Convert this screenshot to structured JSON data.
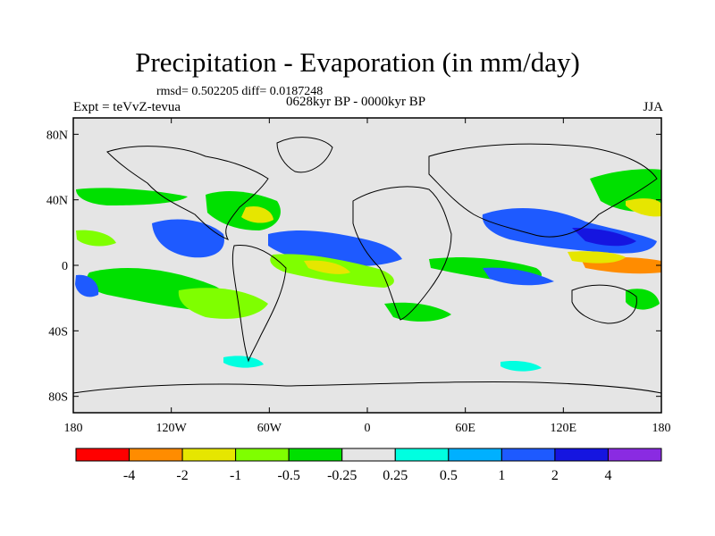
{
  "title": "Precipitation - Evaporation (in mm/day)",
  "stats_text": "rmsd= 0.502205  diff= 0.0187248",
  "left_label": "Expt = teVvZ-tevua",
  "center_label": "0628kyr BP - 0000kyr BP",
  "right_label": "JJA",
  "axes": {
    "lat_ticks": [
      "80N",
      "40N",
      "0",
      "40S",
      "80S"
    ],
    "lon_ticks": [
      "180",
      "120W",
      "60W",
      "0",
      "60E",
      "120E",
      "180"
    ]
  },
  "colorbar": {
    "colors": [
      "#ff0000",
      "#ff8c00",
      "#e6e600",
      "#7fff00",
      "#00e000",
      "#e5e5e5",
      "#00ffe0",
      "#00b0ff",
      "#1e5aff",
      "#1515e0",
      "#8a2be2"
    ],
    "labels": [
      "-4",
      "-2",
      "-1",
      "-0.5",
      "-0.25",
      "0.25",
      "0.5",
      "1",
      "2",
      "4"
    ]
  }
}
